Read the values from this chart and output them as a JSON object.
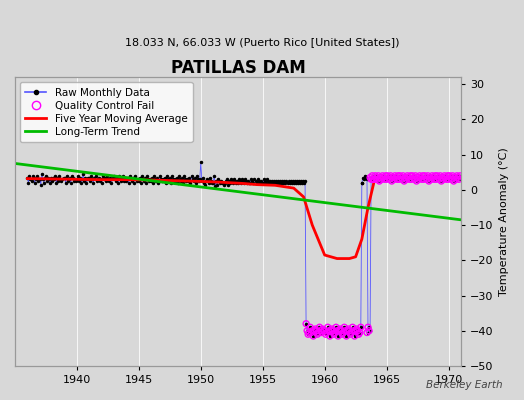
{
  "title": "PATILLAS DAM",
  "subtitle": "18.033 N, 66.033 W (Puerto Rico [United States])",
  "ylabel": "Temperature Anomaly (°C)",
  "watermark": "Berkeley Earth",
  "xlim": [
    1935,
    1971
  ],
  "ylim": [
    -50,
    32
  ],
  "xticks": [
    1940,
    1945,
    1950,
    1955,
    1960,
    1965,
    1970
  ],
  "yticks": [
    -50,
    -40,
    -30,
    -20,
    -10,
    0,
    10,
    20,
    30
  ],
  "bg_color": "#d8d8d8",
  "plot_bg_color": "#d8d8d8",
  "raw_color": "#5555ff",
  "raw_dot_color": "#000000",
  "qc_color": "#ff00ff",
  "moving_avg_color": "#ff0000",
  "trend_color": "#00bb00",
  "legend_items": [
    "Raw Monthly Data",
    "Quality Control Fail",
    "Five Year Moving Average",
    "Long-Term Trend"
  ],
  "normal_years_x": [
    1936.0,
    1936.083,
    1936.167,
    1936.25,
    1936.333,
    1936.417,
    1936.5,
    1936.583,
    1936.667,
    1936.75,
    1936.833,
    1936.917,
    1937.0,
    1937.083,
    1937.167,
    1937.25,
    1937.333,
    1937.417,
    1937.5,
    1937.583,
    1937.667,
    1937.75,
    1937.833,
    1937.917,
    1938.0,
    1938.083,
    1938.167,
    1938.25,
    1938.333,
    1938.417,
    1938.5,
    1938.583,
    1938.667,
    1938.75,
    1938.833,
    1938.917,
    1939.0,
    1939.083,
    1939.167,
    1939.25,
    1939.333,
    1939.417,
    1939.5,
    1939.583,
    1939.667,
    1939.75,
    1939.833,
    1939.917,
    1940.0,
    1940.083,
    1940.167,
    1940.25,
    1940.333,
    1940.417,
    1940.5,
    1940.583,
    1940.667,
    1940.75,
    1940.833,
    1940.917,
    1941.0,
    1941.083,
    1941.167,
    1941.25,
    1941.333,
    1941.417,
    1941.5,
    1941.583,
    1941.667,
    1941.75,
    1941.833,
    1941.917,
    1942.0,
    1942.083,
    1942.167,
    1942.25,
    1942.333,
    1942.417,
    1942.5,
    1942.583,
    1942.667,
    1942.75,
    1942.833,
    1942.917,
    1943.0,
    1943.083,
    1943.167,
    1943.25,
    1943.333,
    1943.417,
    1943.5,
    1943.583,
    1943.667,
    1943.75,
    1943.833,
    1943.917,
    1944.0,
    1944.083,
    1944.167,
    1944.25,
    1944.333,
    1944.417,
    1944.5,
    1944.583,
    1944.667,
    1944.75,
    1944.833,
    1944.917,
    1945.0,
    1945.083,
    1945.167,
    1945.25,
    1945.333,
    1945.417,
    1945.5,
    1945.583,
    1945.667,
    1945.75,
    1945.833,
    1945.917,
    1946.0,
    1946.083,
    1946.167,
    1946.25,
    1946.333,
    1946.417,
    1946.5,
    1946.583,
    1946.667,
    1946.75,
    1946.833,
    1946.917,
    1947.0,
    1947.083,
    1947.167,
    1947.25,
    1947.333,
    1947.417,
    1947.5,
    1947.583,
    1947.667,
    1947.75,
    1947.833,
    1947.917,
    1948.0,
    1948.083,
    1948.167,
    1948.25,
    1948.333,
    1948.417,
    1948.5,
    1948.583,
    1948.667,
    1948.75,
    1948.833,
    1948.917,
    1949.0,
    1949.083,
    1949.167,
    1949.25,
    1949.333,
    1949.417,
    1949.5,
    1949.583,
    1949.667,
    1949.75,
    1949.833,
    1949.917,
    1950.0,
    1950.083,
    1950.167,
    1950.25,
    1950.333,
    1950.417,
    1950.5,
    1950.583,
    1950.667,
    1950.75,
    1950.833,
    1950.917,
    1951.0,
    1951.083,
    1951.167,
    1951.25,
    1951.333,
    1951.417,
    1951.5,
    1951.583,
    1951.667,
    1951.75,
    1951.833,
    1951.917,
    1952.0,
    1952.083,
    1952.167,
    1952.25,
    1952.333,
    1952.417,
    1952.5,
    1952.583,
    1952.667,
    1952.75,
    1952.833,
    1952.917,
    1953.0,
    1953.083,
    1953.167,
    1953.25,
    1953.333,
    1953.417,
    1953.5,
    1953.583,
    1953.667,
    1953.75,
    1953.833,
    1953.917,
    1954.0,
    1954.083,
    1954.167,
    1954.25,
    1954.333,
    1954.417,
    1954.5,
    1954.583,
    1954.667,
    1954.75,
    1954.833,
    1954.917,
    1955.0,
    1955.083,
    1955.167,
    1955.25,
    1955.333,
    1955.417,
    1955.5,
    1955.583,
    1955.667,
    1955.75,
    1955.833,
    1955.917,
    1956.0,
    1956.083,
    1956.167,
    1956.25,
    1956.333,
    1956.417,
    1956.5,
    1956.583,
    1956.667,
    1956.75,
    1956.833,
    1956.917,
    1957.0,
    1957.083,
    1957.167,
    1957.25,
    1957.333,
    1957.417,
    1957.5,
    1957.583,
    1957.667,
    1957.75,
    1957.833,
    1957.917
  ],
  "normal_years_y": [
    3.5,
    2.0,
    4.0,
    3.0,
    2.5,
    4.0,
    3.5,
    2.0,
    3.0,
    4.0,
    2.5,
    3.0,
    3.0,
    1.5,
    4.5,
    3.0,
    2.0,
    3.5,
    4.0,
    2.5,
    3.5,
    3.0,
    2.0,
    3.5,
    2.5,
    3.5,
    3.0,
    4.0,
    2.0,
    3.5,
    2.5,
    4.0,
    3.0,
    2.5,
    3.0,
    3.5,
    3.5,
    2.0,
    4.0,
    2.5,
    3.0,
    3.5,
    2.0,
    4.0,
    3.5,
    2.5,
    3.0,
    2.5,
    3.0,
    4.0,
    2.5,
    3.5,
    2.0,
    3.0,
    4.5,
    2.5,
    3.5,
    2.0,
    3.0,
    3.5,
    3.5,
    2.5,
    4.0,
    3.0,
    2.0,
    3.5,
    4.0,
    2.5,
    3.0,
    3.5,
    2.5,
    3.0,
    2.0,
    4.0,
    3.0,
    3.5,
    2.5,
    4.0,
    3.0,
    2.5,
    3.5,
    2.0,
    3.0,
    3.5,
    4.0,
    3.0,
    2.5,
    3.5,
    2.0,
    4.0,
    3.5,
    2.5,
    3.0,
    4.0,
    2.5,
    3.0,
    2.5,
    3.5,
    2.0,
    4.0,
    3.0,
    2.5,
    3.5,
    2.0,
    4.0,
    3.0,
    2.5,
    3.0,
    2.5,
    3.5,
    2.0,
    4.0,
    3.0,
    2.5,
    3.5,
    2.0,
    4.0,
    3.0,
    2.5,
    3.0,
    2.5,
    3.5,
    2.0,
    4.0,
    3.0,
    2.5,
    3.5,
    2.0,
    4.0,
    3.0,
    2.5,
    3.0,
    2.5,
    3.5,
    2.0,
    4.0,
    3.0,
    2.5,
    3.5,
    2.0,
    4.0,
    3.0,
    2.5,
    3.0,
    2.5,
    3.5,
    2.0,
    4.0,
    3.0,
    2.5,
    3.5,
    2.0,
    4.0,
    3.0,
    2.5,
    3.0,
    2.5,
    3.5,
    2.0,
    4.0,
    3.0,
    2.5,
    3.5,
    2.0,
    4.0,
    3.0,
    2.5,
    3.0,
    8.0,
    2.5,
    3.5,
    2.0,
    1.5,
    2.5,
    3.0,
    2.5,
    2.0,
    3.5,
    2.5,
    2.0,
    2.0,
    4.0,
    1.0,
    2.5,
    1.5,
    3.0,
    2.5,
    2.0,
    2.5,
    2.0,
    1.5,
    2.0,
    2.5,
    3.0,
    1.5,
    2.5,
    2.0,
    3.0,
    2.5,
    2.0,
    3.0,
    2.5,
    2.0,
    2.5,
    2.0,
    3.0,
    2.5,
    2.0,
    3.0,
    2.5,
    2.0,
    3.0,
    2.5,
    2.0,
    2.5,
    2.0,
    2.0,
    3.0,
    2.5,
    2.0,
    3.0,
    2.5,
    2.0,
    3.0,
    2.5,
    2.0,
    2.5,
    2.0,
    2.0,
    3.0,
    2.5,
    2.0,
    3.0,
    2.5,
    2.0,
    2.5,
    2.0,
    2.5,
    2.0,
    2.5,
    2.0,
    2.5,
    2.0,
    2.5,
    2.0,
    2.5,
    2.0,
    2.5,
    2.0,
    2.5,
    2.0,
    2.5,
    2.0,
    2.5,
    2.0,
    2.5,
    2.0,
    2.5,
    2.0,
    2.5,
    2.0,
    2.5,
    2.0,
    2.5
  ],
  "bad_segment_x": [
    1958.0,
    1958.083,
    1958.167,
    1958.25,
    1958.333,
    1958.417,
    1958.5,
    1958.583,
    1958.667,
    1958.75,
    1958.833,
    1958.917,
    1959.0,
    1959.083,
    1959.167,
    1959.25,
    1959.333,
    1959.417,
    1959.5,
    1959.583,
    1959.667,
    1959.75,
    1959.833,
    1959.917,
    1960.0,
    1960.083,
    1960.167,
    1960.25,
    1960.333,
    1960.417,
    1960.5,
    1960.583,
    1960.667,
    1960.75,
    1960.833,
    1960.917,
    1961.0,
    1961.083,
    1961.167,
    1961.25,
    1961.333,
    1961.417,
    1961.5,
    1961.583,
    1961.667,
    1961.75,
    1961.833,
    1961.917,
    1962.0,
    1962.083,
    1962.167,
    1962.25,
    1962.333,
    1962.417,
    1962.5,
    1962.583,
    1962.667,
    1962.75,
    1962.833,
    1962.917,
    1963.0
  ],
  "bad_segment_y": [
    2.0,
    2.5,
    2.0,
    2.5,
    2.0,
    2.5,
    -38.0,
    -40.0,
    -41.0,
    -40.5,
    -39.0,
    -40.5,
    -40.0,
    -41.5,
    -40.0,
    -39.5,
    -40.0,
    -41.0,
    -40.5,
    -39.0,
    -40.0,
    -40.5,
    -39.5,
    -40.0,
    -40.0,
    -41.0,
    -40.5,
    -39.0,
    -40.0,
    -41.5,
    -40.0,
    -39.5,
    -40.0,
    -41.0,
    -40.5,
    -39.0,
    -40.0,
    -41.5,
    -40.0,
    -39.5,
    -40.0,
    -41.0,
    -40.5,
    -39.0,
    -40.0,
    -41.5,
    -40.0,
    -39.5,
    -40.0,
    -41.0,
    -40.5,
    -39.0,
    -40.0,
    -41.5,
    -40.0,
    -39.5,
    -40.0,
    -41.0,
    -40.5,
    -39.0,
    2.0
  ],
  "post_bad_x": [
    1963.0,
    1963.083,
    1963.167,
    1963.25,
    1963.333,
    1963.417,
    1963.5,
    1963.583,
    1963.667,
    1963.75,
    1963.833,
    1963.917,
    1964.0,
    1964.083,
    1964.167,
    1964.25,
    1964.333,
    1964.417,
    1964.5,
    1964.583,
    1964.667,
    1964.75,
    1964.833,
    1964.917,
    1965.0,
    1965.083,
    1965.167,
    1965.25,
    1965.333,
    1965.417,
    1965.5,
    1965.583,
    1965.667,
    1965.75,
    1965.833,
    1965.917,
    1966.0,
    1966.083,
    1966.167,
    1966.25,
    1966.333,
    1966.417,
    1966.5,
    1966.583,
    1966.667,
    1966.75,
    1966.833,
    1966.917,
    1967.0,
    1967.083,
    1967.167,
    1967.25,
    1967.333,
    1967.417,
    1967.5,
    1967.583,
    1967.667,
    1967.75,
    1967.833,
    1967.917,
    1968.0,
    1968.083,
    1968.167,
    1968.25,
    1968.333,
    1968.417,
    1968.5,
    1968.583,
    1968.667,
    1968.75,
    1968.833,
    1968.917,
    1969.0,
    1969.083,
    1969.167,
    1969.25,
    1969.333,
    1969.417,
    1969.5,
    1969.583,
    1969.667,
    1969.75,
    1969.833,
    1969.917,
    1970.0,
    1970.083,
    1970.167,
    1970.25,
    1970.333,
    1970.417,
    1970.5,
    1970.583,
    1970.667,
    1970.75,
    1970.833,
    1970.917
  ],
  "post_bad_y": [
    2.0,
    3.5,
    3.0,
    4.0,
    3.5,
    3.0,
    -40.5,
    -39.0,
    -40.0,
    3.5,
    3.0,
    4.0,
    3.0,
    4.0,
    3.5,
    3.0,
    4.0,
    2.5,
    3.5,
    3.0,
    4.0,
    3.5,
    3.0,
    4.0,
    3.0,
    4.0,
    3.5,
    3.0,
    4.0,
    2.5,
    3.5,
    3.0,
    4.0,
    3.5,
    3.0,
    4.0,
    3.0,
    4.0,
    3.5,
    3.0,
    4.0,
    2.5,
    3.5,
    3.0,
    4.0,
    3.5,
    3.0,
    4.0,
    3.0,
    4.0,
    3.5,
    3.0,
    4.0,
    2.5,
    3.5,
    3.0,
    4.0,
    3.5,
    3.0,
    4.0,
    3.0,
    4.0,
    3.5,
    3.0,
    4.0,
    2.5,
    3.5,
    3.0,
    4.0,
    3.5,
    3.0,
    4.0,
    3.0,
    4.0,
    3.5,
    3.0,
    4.0,
    2.5,
    3.5,
    3.0,
    4.0,
    3.5,
    3.0,
    4.0,
    3.0,
    4.0,
    3.5,
    3.0,
    4.0,
    2.5,
    3.5,
    3.0,
    4.0,
    3.5,
    3.0,
    4.0
  ],
  "qc_fail_x": [
    1958.5,
    1958.583,
    1958.667,
    1958.75,
    1958.833,
    1958.917,
    1959.0,
    1959.083,
    1959.167,
    1959.25,
    1959.333,
    1959.417,
    1959.5,
    1959.583,
    1959.667,
    1959.75,
    1959.833,
    1959.917,
    1960.0,
    1960.083,
    1960.167,
    1960.25,
    1960.333,
    1960.417,
    1960.5,
    1960.583,
    1960.667,
    1960.75,
    1960.833,
    1960.917,
    1961.0,
    1961.083,
    1961.167,
    1961.25,
    1961.333,
    1961.417,
    1961.5,
    1961.583,
    1961.667,
    1961.75,
    1961.833,
    1961.917,
    1962.0,
    1962.083,
    1962.167,
    1962.25,
    1962.333,
    1962.417,
    1962.5,
    1962.583,
    1962.667,
    1962.75,
    1962.833,
    1962.917,
    1963.417,
    1963.5,
    1963.583,
    1963.667,
    1963.75,
    1963.833,
    1963.917,
    1964.0,
    1964.083,
    1964.167,
    1964.25,
    1964.333,
    1964.417,
    1964.5,
    1964.583,
    1964.667,
    1964.75,
    1964.833,
    1964.917,
    1965.0,
    1965.083,
    1965.167,
    1965.25,
    1965.333,
    1965.417,
    1965.5,
    1965.583,
    1965.667,
    1965.75,
    1965.833,
    1965.917,
    1966.0,
    1966.083,
    1966.167,
    1966.25,
    1966.333,
    1966.417,
    1966.5,
    1966.583,
    1966.667,
    1966.75,
    1966.833,
    1966.917,
    1967.0,
    1967.083,
    1967.167,
    1967.25,
    1967.333,
    1967.417,
    1967.5,
    1967.583,
    1967.667,
    1967.75,
    1967.833,
    1967.917,
    1968.0,
    1968.083,
    1968.167,
    1968.25,
    1968.333,
    1968.417,
    1968.5,
    1968.583,
    1968.667,
    1968.75,
    1968.833,
    1968.917,
    1969.0,
    1969.083,
    1969.167,
    1969.25,
    1969.333,
    1969.417,
    1969.5,
    1969.583,
    1969.667,
    1969.75,
    1969.833,
    1969.917,
    1970.0,
    1970.083,
    1970.167,
    1970.25,
    1970.333,
    1970.417,
    1970.5,
    1970.583,
    1970.667,
    1970.75,
    1970.833,
    1970.917
  ],
  "qc_fail_y": [
    -38.0,
    -40.0,
    -41.0,
    -40.5,
    -39.0,
    -40.5,
    -40.0,
    -41.5,
    -40.0,
    -39.5,
    -40.0,
    -41.0,
    -40.5,
    -39.0,
    -40.0,
    -40.5,
    -39.5,
    -40.0,
    -40.0,
    -41.0,
    -40.5,
    -39.0,
    -40.0,
    -41.5,
    -40.0,
    -39.5,
    -40.0,
    -41.0,
    -40.5,
    -39.0,
    -40.0,
    -41.5,
    -40.0,
    -39.5,
    -40.0,
    -41.0,
    -40.5,
    -39.0,
    -40.0,
    -41.5,
    -40.0,
    -39.5,
    -40.0,
    -41.0,
    -40.5,
    -39.0,
    -40.0,
    -41.5,
    -40.0,
    -39.5,
    -40.0,
    -41.0,
    -40.5,
    -39.0,
    -40.5,
    -39.0,
    -40.0,
    3.5,
    3.0,
    4.0,
    3.0,
    3.0,
    4.0,
    3.5,
    3.0,
    4.0,
    2.5,
    3.5,
    3.0,
    4.0,
    3.5,
    3.0,
    4.0,
    3.0,
    4.0,
    3.5,
    3.0,
    4.0,
    2.5,
    3.5,
    3.0,
    4.0,
    3.5,
    3.0,
    4.0,
    3.0,
    4.0,
    3.5,
    3.0,
    4.0,
    2.5,
    3.5,
    3.0,
    4.0,
    3.5,
    3.0,
    4.0,
    3.0,
    4.0,
    3.5,
    3.0,
    4.0,
    2.5,
    3.5,
    3.0,
    4.0,
    3.5,
    3.0,
    4.0,
    3.0,
    4.0,
    3.5,
    3.0,
    4.0,
    2.5,
    3.5,
    3.0,
    4.0,
    3.5,
    3.0,
    4.0,
    3.0,
    4.0,
    3.5,
    3.0,
    4.0,
    2.5,
    3.5,
    3.0,
    4.0,
    3.5,
    3.0,
    4.0,
    3.0,
    4.0,
    3.5,
    3.0,
    4.0,
    2.5,
    3.5,
    3.0,
    4.0,
    3.5,
    3.0,
    4.0
  ],
  "moving_avg_x": [
    1936.0,
    1938.0,
    1940.0,
    1942.0,
    1944.0,
    1946.0,
    1948.0,
    1950.0,
    1951.5,
    1952.5,
    1953.5,
    1954.5,
    1956.0,
    1957.5,
    1958.3,
    1959.0,
    1960.0,
    1961.0,
    1961.5,
    1962.0,
    1962.5,
    1963.0,
    1963.5,
    1964.0,
    1964.5,
    1965.0,
    1966.0,
    1967.0,
    1968.0,
    1969.0,
    1970.5
  ],
  "moving_avg_y": [
    3.2,
    3.1,
    3.0,
    2.9,
    2.9,
    2.8,
    2.6,
    2.4,
    2.2,
    2.0,
    1.8,
    1.5,
    1.3,
    0.5,
    -2.0,
    -10.0,
    -18.5,
    -19.5,
    -19.5,
    -19.5,
    -19.0,
    -14.0,
    -5.0,
    2.5,
    3.5,
    3.5,
    3.5,
    3.5,
    3.5,
    3.5,
    3.5
  ],
  "trend_x": [
    1935,
    1971
  ],
  "trend_y": [
    7.5,
    -8.5
  ]
}
